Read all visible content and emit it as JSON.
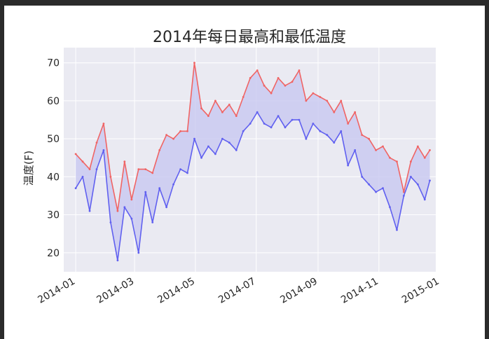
{
  "chart_data": {
    "type": "area",
    "title": "2014年每日最高和最低温度",
    "xlabel": "",
    "ylabel": "温度(F)",
    "x_range": [
      "2013-12-20",
      "2014-12-28"
    ],
    "ylim": [
      15,
      74
    ],
    "x_ticks": [
      "2014-01",
      "2014-03",
      "2014-05",
      "2014-07",
      "2014-09",
      "2014-11",
      "2015-01"
    ],
    "y_ticks": [
      20,
      30,
      40,
      50,
      60,
      70
    ],
    "grid": true,
    "fill_between": true,
    "colors": {
      "high": "#f06464",
      "low": "#6060f0",
      "fill": "#c8c8f0",
      "plot_bg": "#eaeaf2",
      "grid": "#ffffff"
    },
    "series": [
      {
        "key": "high",
        "x": [
          "2014-01-01",
          "2014-01-08",
          "2014-01-15",
          "2014-01-22",
          "2014-01-29",
          "2014-02-05",
          "2014-02-12",
          "2014-02-19",
          "2014-02-26",
          "2014-03-05",
          "2014-03-12",
          "2014-03-19",
          "2014-03-26",
          "2014-04-02",
          "2014-04-09",
          "2014-04-16",
          "2014-04-23",
          "2014-04-30",
          "2014-05-07",
          "2014-05-14",
          "2014-05-21",
          "2014-05-28",
          "2014-06-04",
          "2014-06-11",
          "2014-06-18",
          "2014-06-25",
          "2014-07-02",
          "2014-07-09",
          "2014-07-16",
          "2014-07-23",
          "2014-07-30",
          "2014-08-06",
          "2014-08-13",
          "2014-08-20",
          "2014-08-27",
          "2014-09-03",
          "2014-09-10",
          "2014-09-17",
          "2014-09-24",
          "2014-10-01",
          "2014-10-08",
          "2014-10-15",
          "2014-10-22",
          "2014-10-29",
          "2014-11-05",
          "2014-11-12",
          "2014-11-19",
          "2014-11-26",
          "2014-12-03",
          "2014-12-10",
          "2014-12-17",
          "2014-12-22"
        ],
        "values": [
          46,
          44,
          42,
          49,
          54,
          40,
          31,
          44,
          34,
          42,
          42,
          41,
          47,
          51,
          50,
          52,
          52,
          70,
          58,
          56,
          60,
          57,
          59,
          56,
          61,
          66,
          68,
          64,
          62,
          66,
          64,
          65,
          68,
          60,
          62,
          61,
          60,
          57,
          60,
          54,
          57,
          51,
          50,
          47,
          48,
          45,
          44,
          36,
          44,
          48,
          45,
          47
        ]
      },
      {
        "key": "low",
        "x": [
          "2014-01-01",
          "2014-01-08",
          "2014-01-15",
          "2014-01-22",
          "2014-01-29",
          "2014-02-05",
          "2014-02-12",
          "2014-02-19",
          "2014-02-26",
          "2014-03-05",
          "2014-03-12",
          "2014-03-19",
          "2014-03-26",
          "2014-04-02",
          "2014-04-09",
          "2014-04-16",
          "2014-04-23",
          "2014-04-30",
          "2014-05-07",
          "2014-05-14",
          "2014-05-21",
          "2014-05-28",
          "2014-06-04",
          "2014-06-11",
          "2014-06-18",
          "2014-06-25",
          "2014-07-02",
          "2014-07-09",
          "2014-07-16",
          "2014-07-23",
          "2014-07-30",
          "2014-08-06",
          "2014-08-13",
          "2014-08-20",
          "2014-08-27",
          "2014-09-03",
          "2014-09-10",
          "2014-09-17",
          "2014-09-24",
          "2014-10-01",
          "2014-10-08",
          "2014-10-15",
          "2014-10-22",
          "2014-10-29",
          "2014-11-05",
          "2014-11-12",
          "2014-11-19",
          "2014-11-26",
          "2014-12-03",
          "2014-12-10",
          "2014-12-17",
          "2014-12-22"
        ],
        "values": [
          37,
          40,
          31,
          42,
          47,
          28,
          18,
          32,
          29,
          20,
          36,
          28,
          37,
          32,
          38,
          42,
          41,
          50,
          45,
          48,
          46,
          50,
          49,
          47,
          52,
          54,
          57,
          54,
          53,
          56,
          53,
          55,
          55,
          50,
          54,
          52,
          51,
          49,
          52,
          43,
          47,
          40,
          38,
          36,
          37,
          32,
          26,
          35,
          40,
          38,
          34,
          39
        ]
      }
    ]
  }
}
